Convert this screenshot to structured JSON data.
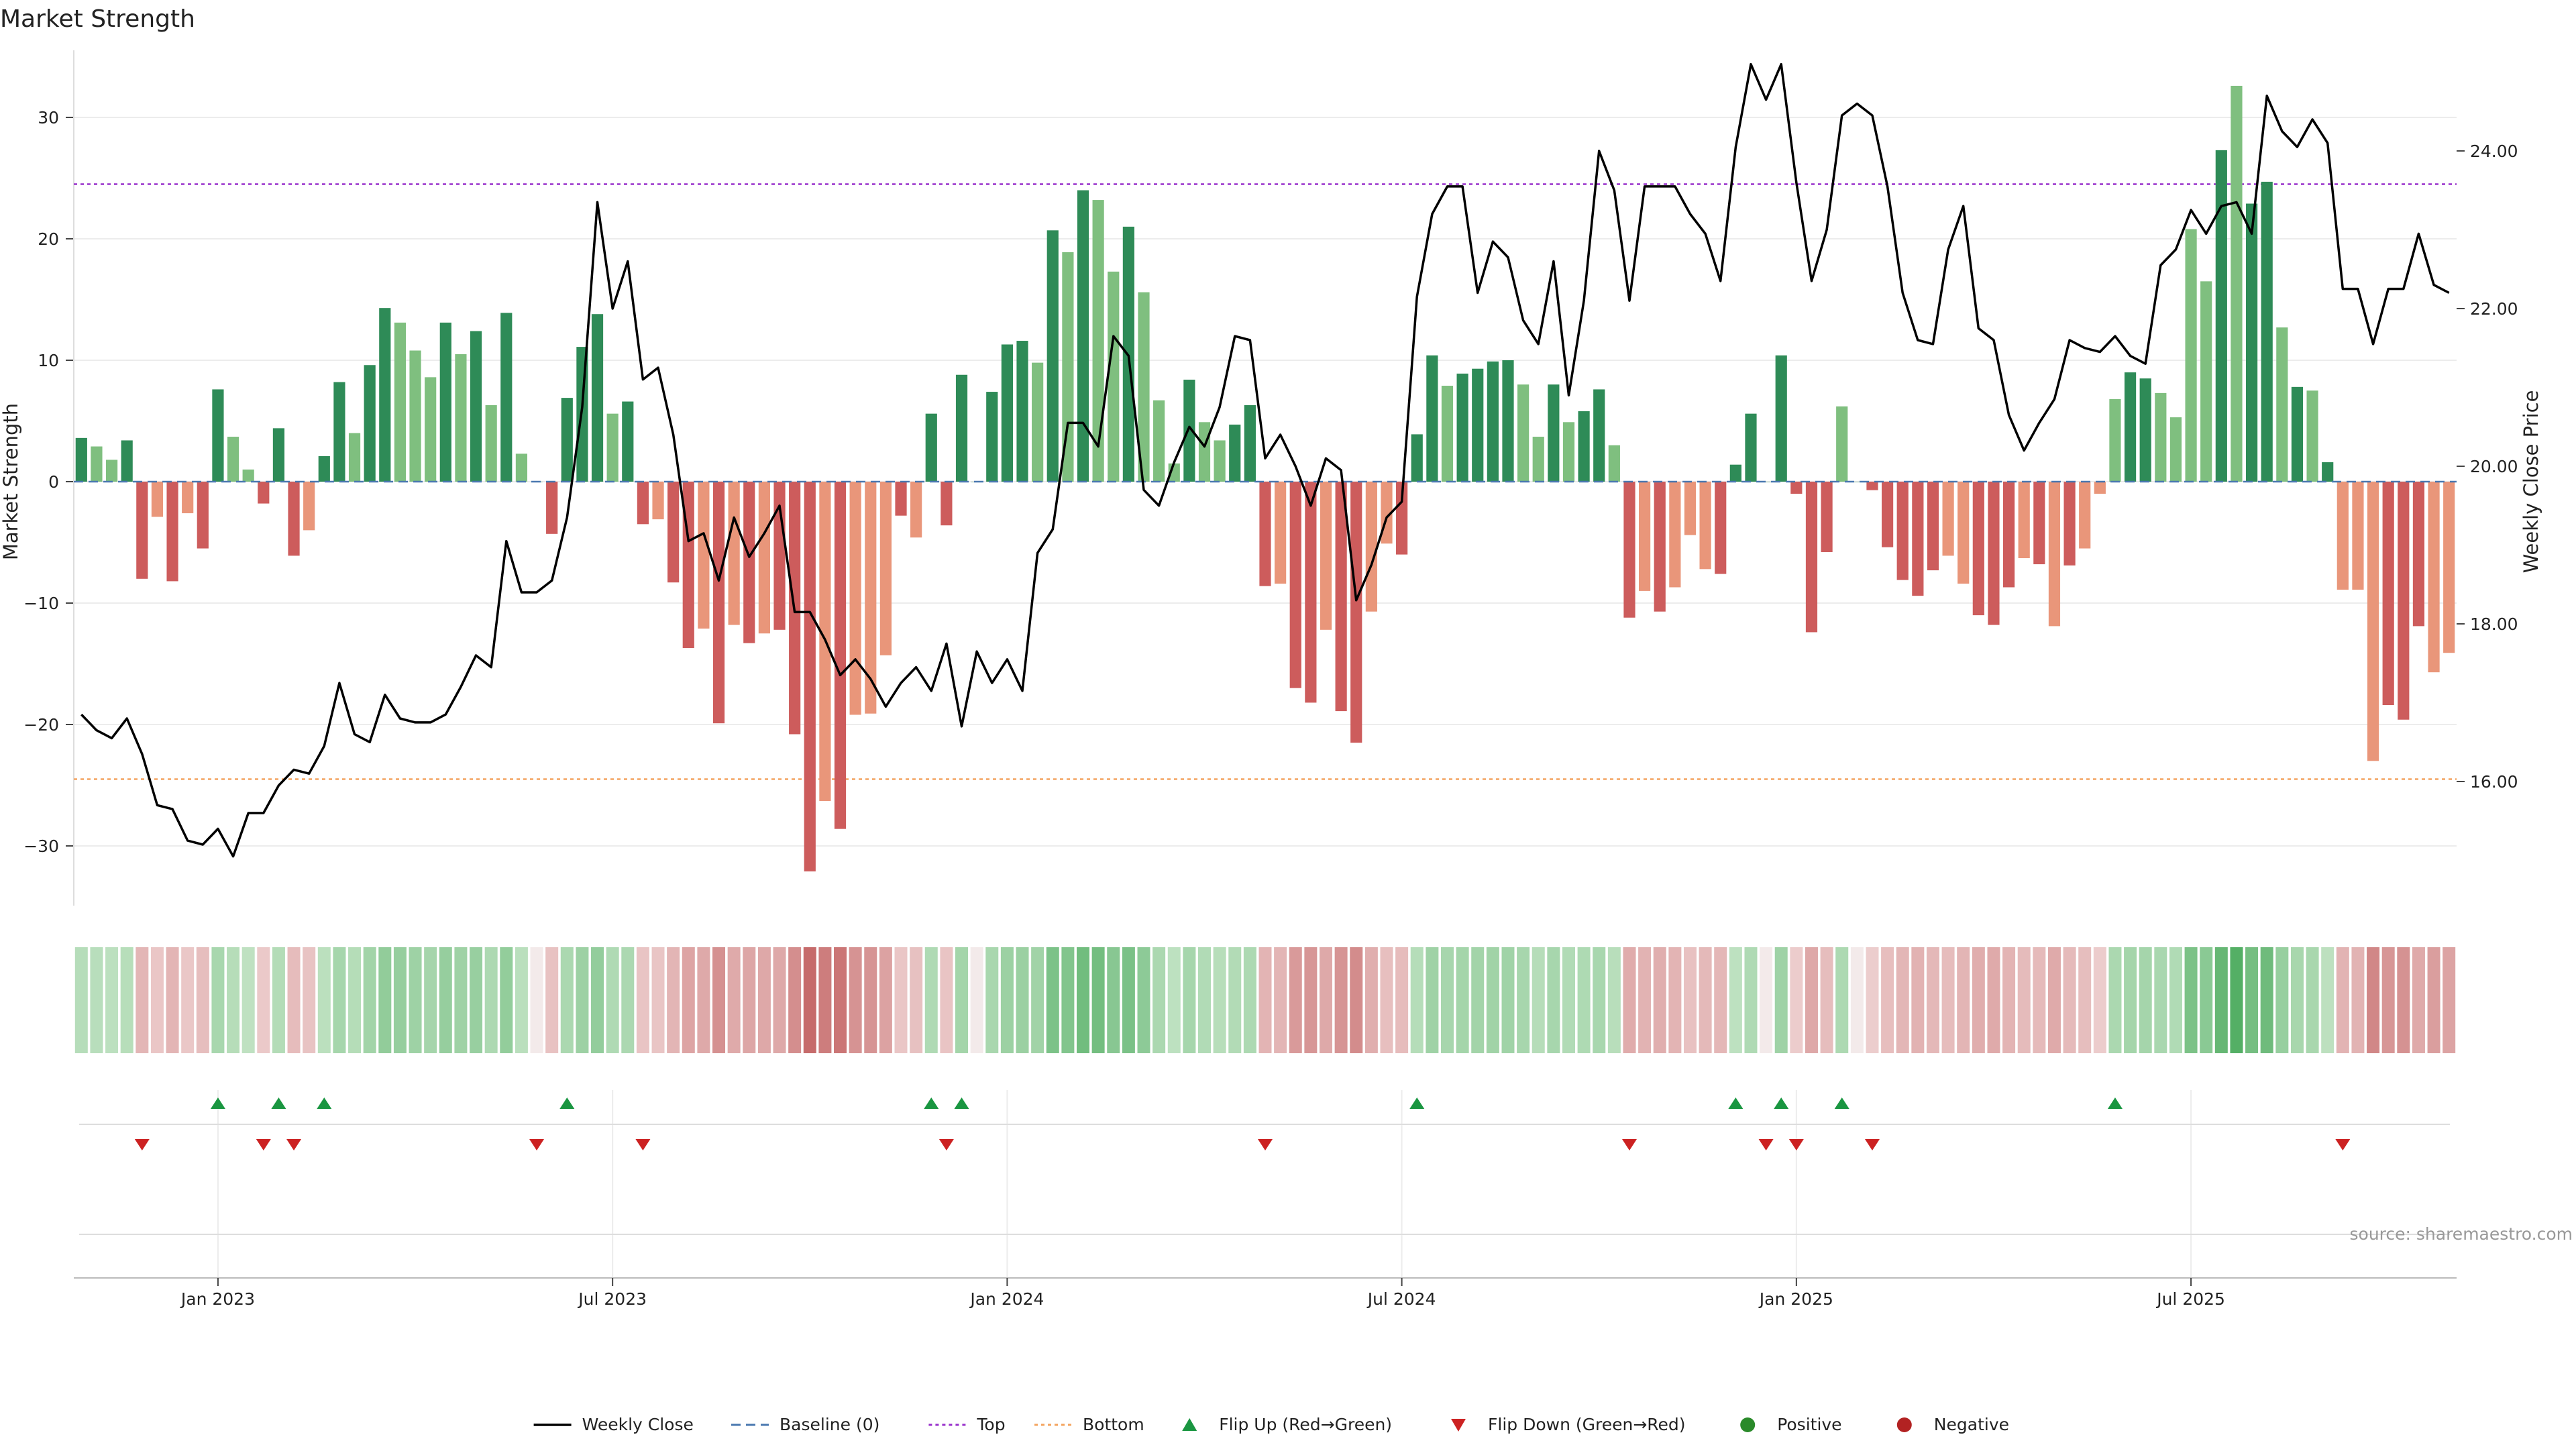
{
  "chart_data": {
    "type": "bar",
    "title": "Market Strength",
    "ylabel_left": "Market Strength",
    "ylabel_right": "Weekly Close Price",
    "source": "source: sharemaestro.com",
    "ylim_left": [
      -35,
      35
    ],
    "ylim_right": [
      14.6,
      25.4
    ],
    "yticks_left": [
      30,
      20,
      10,
      0,
      -10,
      -20,
      -30
    ],
    "yticks_right": [
      "24.00",
      "22.00",
      "20.00",
      "18.00",
      "16.00"
    ],
    "x_tick_labels": [
      "Jan 2023",
      "Jul 2023",
      "Jan 2024",
      "Jul 2024",
      "Jan 2025",
      "Jul 2025"
    ],
    "x_tick_weeks": [
      9,
      35,
      61,
      87,
      113,
      139
    ],
    "top_line": 24.5,
    "bottom_line": -24.5,
    "colors": {
      "pos_dark": "#2e8b57",
      "pos_light": "#7fbf7f",
      "neg_dark": "#cd5c5c",
      "neg_light": "#e9967a",
      "close_line": "#000000",
      "top_line": "#9932cc",
      "bottom_line": "#f4a460",
      "flip_up": "#1a9641",
      "flip_down": "#cc2222",
      "positive": "#2a8a2a",
      "negative": "#b22222"
    },
    "strength": [
      3.6,
      2.9,
      1.8,
      3.4,
      -8,
      -2.9,
      -8.2,
      -2.6,
      -5.5,
      7.6,
      3.7,
      1,
      -1.8,
      4.4,
      -6.1,
      -4,
      2.1,
      8.2,
      4,
      9.6,
      14.3,
      13.1,
      10.8,
      8.6,
      13.1,
      10.5,
      12.4,
      6.3,
      13.9,
      2.3,
      0,
      -4.3,
      6.9,
      11.1,
      13.8,
      5.6,
      6.6,
      -3.5,
      -3.1,
      -8.3,
      -13.7,
      -12.1,
      -19.9,
      -11.8,
      -13.3,
      -12.5,
      -12.2,
      -20.8,
      -32.1,
      -26.3,
      -28.6,
      -19.2,
      -19.1,
      -14.3,
      -2.8,
      -4.6,
      5.6,
      -3.6,
      8.8,
      0,
      7.4,
      11.3,
      11.6,
      9.8,
      20.7,
      18.9,
      24,
      23.2,
      17.3,
      21,
      15.6,
      6.7,
      1.5,
      8.4,
      4.9,
      3.4,
      4.7,
      6.3,
      -8.6,
      -8.4,
      -17,
      -18.2,
      -12.2,
      -18.9,
      -21.5,
      -10.7,
      -5.1,
      -6,
      3.9,
      10.4,
      7.9,
      8.9,
      9.3,
      9.9,
      10,
      8,
      3.7,
      8,
      4.9,
      5.8,
      7.6,
      3,
      -11.2,
      -9,
      -10.7,
      -8.7,
      -4.4,
      -7.2,
      -7.6,
      1.4,
      5.6,
      0,
      10.4,
      -1,
      -12.4,
      -5.8,
      6.2,
      0,
      -0.7,
      -5.4,
      -8.1,
      -9.4,
      -7.3,
      -6.1,
      -8.4,
      -11,
      -11.8,
      -8.7,
      -6.3,
      -6.8,
      -11.9,
      -6.9,
      -5.5,
      -1,
      6.8,
      9,
      8.5,
      7.3,
      5.3,
      20.8,
      16.5,
      27.3,
      32.6,
      22.9,
      24.7,
      12.7,
      7.8,
      7.5,
      1.6,
      -8.9,
      -8.9,
      -23,
      -18.4,
      -19.6,
      -11.9,
      -15.7,
      -14.1
    ],
    "bar_shade": [
      "d",
      "l",
      "l",
      "d",
      "d",
      "l",
      "d",
      "l",
      "d",
      "d",
      "l",
      "l",
      "d",
      "d",
      "d",
      "l",
      "d",
      "d",
      "l",
      "d",
      "d",
      "l",
      "l",
      "l",
      "d",
      "l",
      "d",
      "l",
      "d",
      "l",
      "d",
      "d",
      "d",
      "d",
      "d",
      "l",
      "d",
      "d",
      "l",
      "d",
      "d",
      "l",
      "d",
      "l",
      "d",
      "l",
      "d",
      "d",
      "d",
      "l",
      "d",
      "l",
      "l",
      "l",
      "d",
      "l",
      "d",
      "d",
      "d",
      "d",
      "d",
      "d",
      "d",
      "l",
      "d",
      "l",
      "d",
      "l",
      "l",
      "d",
      "l",
      "l",
      "l",
      "d",
      "l",
      "l",
      "d",
      "d",
      "d",
      "l",
      "d",
      "d",
      "l",
      "d",
      "d",
      "l",
      "l",
      "d",
      "d",
      "d",
      "l",
      "d",
      "d",
      "d",
      "d",
      "l",
      "l",
      "d",
      "l",
      "d",
      "d",
      "l",
      "d",
      "l",
      "d",
      "l",
      "l",
      "l",
      "d",
      "d",
      "d",
      "d",
      "d",
      "d",
      "d",
      "d",
      "l",
      "d",
      "d",
      "d",
      "d",
      "d",
      "d",
      "l",
      "l",
      "d",
      "d",
      "d",
      "l",
      "d",
      "l",
      "d",
      "l",
      "l",
      "l",
      "d",
      "d",
      "l",
      "l",
      "l",
      "l",
      "d",
      "l",
      "d",
      "d",
      "l",
      "d",
      "l",
      "d",
      "l",
      "l",
      "l",
      "d",
      "d",
      "d",
      "l",
      "l",
      "l",
      "d",
      "l"
    ],
    "weekly_close": [
      16.85,
      16.65,
      16.55,
      16.8,
      16.35,
      15.7,
      15.65,
      15.25,
      15.2,
      15.4,
      15.05,
      15.6,
      15.6,
      15.95,
      16.15,
      16.1,
      16.45,
      17.25,
      16.6,
      16.5,
      17.1,
      16.8,
      16.75,
      16.75,
      16.85,
      17.2,
      17.6,
      17.45,
      19.05,
      18.4,
      18.4,
      18.55,
      19.35,
      20.75,
      23.35,
      22.0,
      22.6,
      21.1,
      21.25,
      20.4,
      19.05,
      19.15,
      18.55,
      19.35,
      18.85,
      19.15,
      19.5,
      18.15,
      18.15,
      17.8,
      17.35,
      17.55,
      17.3,
      16.95,
      17.25,
      17.45,
      17.15,
      17.75,
      16.7,
      17.65,
      17.25,
      17.55,
      17.15,
      18.9,
      19.2,
      20.55,
      20.55,
      20.25,
      21.65,
      21.4,
      19.7,
      19.5,
      20.05,
      20.5,
      20.25,
      20.75,
      21.65,
      21.6,
      20.1,
      20.4,
      20.0,
      19.5,
      20.1,
      19.95,
      18.3,
      18.75,
      19.35,
      19.55,
      22.15,
      23.2,
      23.55,
      23.55,
      22.2,
      22.85,
      22.65,
      21.85,
      21.55,
      22.6,
      20.9,
      22.1,
      24.0,
      23.5,
      22.1,
      23.55,
      23.55,
      23.55,
      23.2,
      22.95,
      22.35,
      24.05,
      25.1,
      24.65,
      25.1,
      23.6,
      22.35,
      23.0,
      24.45,
      24.6,
      24.45,
      23.55,
      22.2,
      21.6,
      21.55,
      22.75,
      23.3,
      21.75,
      21.6,
      20.65,
      20.2,
      20.55,
      20.85,
      21.6,
      21.5,
      21.45,
      21.65,
      21.4,
      21.3,
      22.55,
      22.75,
      23.25,
      22.95,
      23.3,
      23.35,
      22.95,
      24.7,
      24.25,
      24.05,
      24.4,
      24.1,
      22.25,
      22.25,
      21.55,
      22.25,
      22.25,
      22.95,
      22.3,
      22.2
    ],
    "flip_up_weeks": [
      9,
      13,
      16,
      32,
      56,
      58,
      88,
      109,
      112,
      116,
      134
    ],
    "flip_down_weeks": [
      4,
      12,
      14,
      30,
      37,
      57,
      78,
      102,
      111,
      113,
      118,
      149
    ],
    "legend": [
      {
        "label": "Weekly Close",
        "kind": "line"
      },
      {
        "label": "Baseline (0)",
        "kind": "dashed"
      },
      {
        "label": "Top",
        "kind": "dotted-purple"
      },
      {
        "label": "Bottom",
        "kind": "dotted-orange"
      },
      {
        "label": "Flip Up (Red→Green)",
        "kind": "tri-up"
      },
      {
        "label": "Flip Down (Green→Red)",
        "kind": "tri-down"
      },
      {
        "label": "Positive",
        "kind": "dot-green"
      },
      {
        "label": "Negative",
        "kind": "dot-red"
      }
    ]
  }
}
